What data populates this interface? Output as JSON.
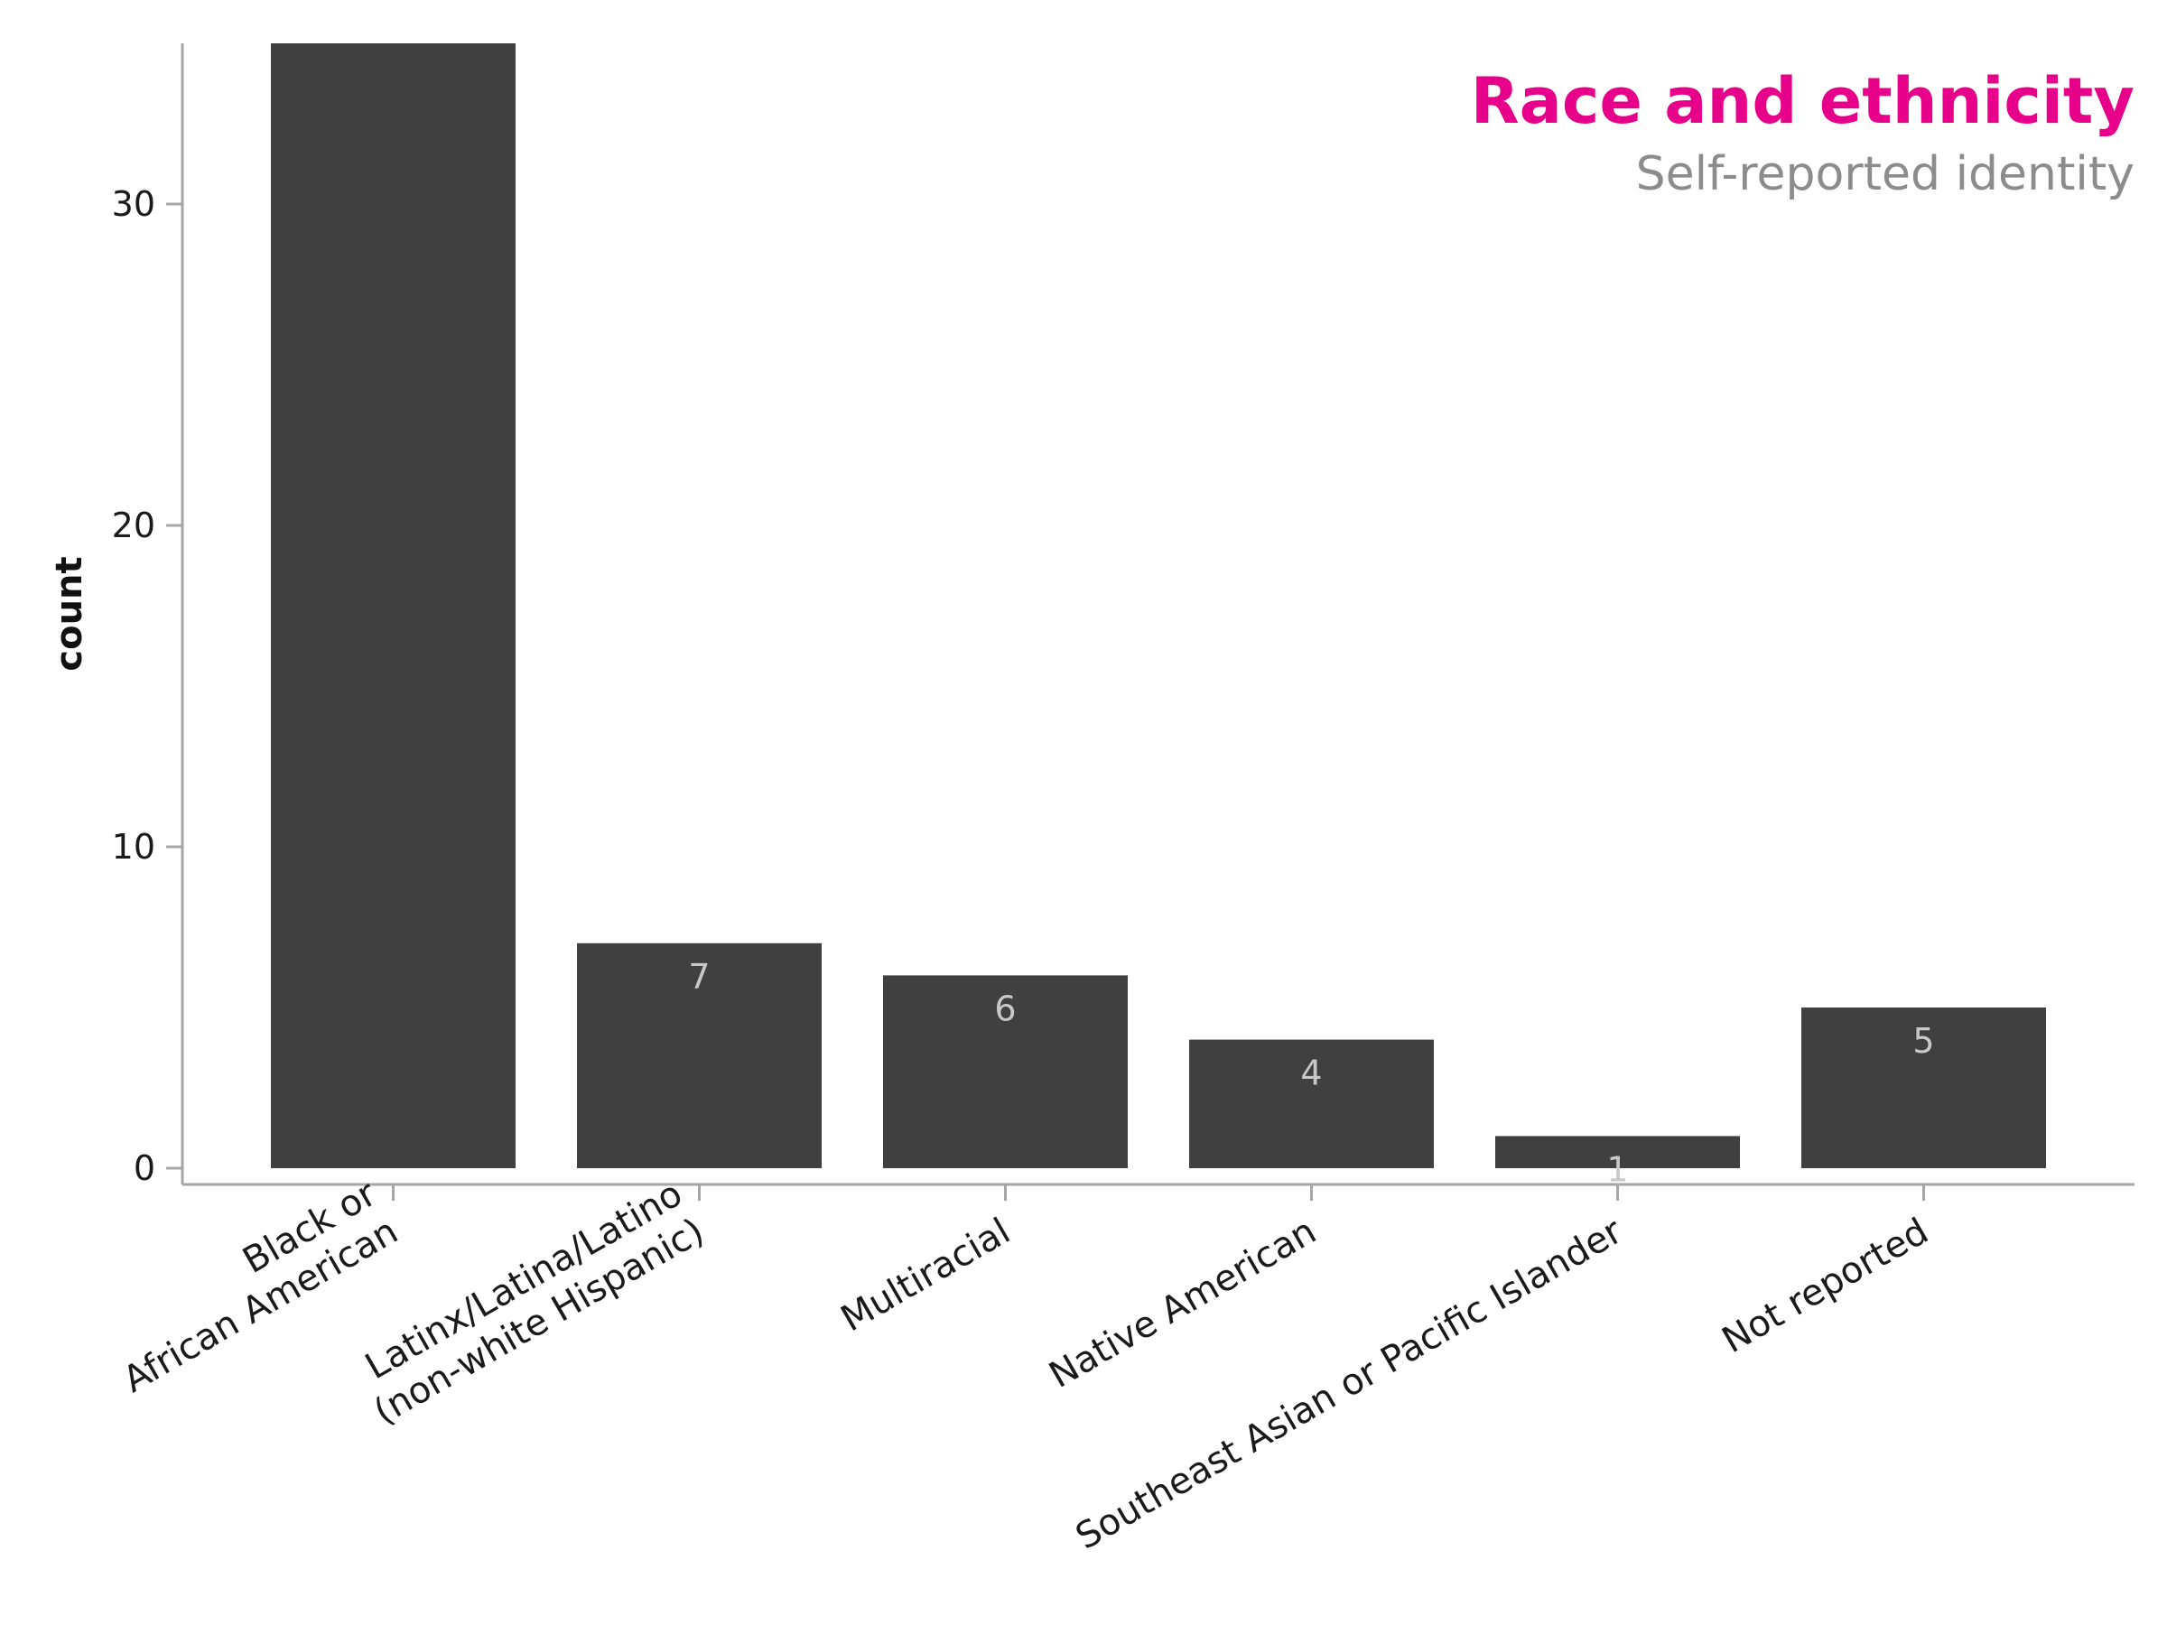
{
  "chart_data": {
    "type": "bar",
    "title": "Race and ethnicity",
    "subtitle": "Self-reported identity",
    "xlabel": "",
    "ylabel": "count",
    "categories": [
      [
        "Black or",
        "African American"
      ],
      [
        "Latinx/Latina/Latino",
        "(non-white Hispanic)"
      ],
      [
        "Multiracial"
      ],
      [
        "Native American"
      ],
      [
        "Southeast Asian or Pacific Islander"
      ],
      [
        "Not reported"
      ]
    ],
    "values": [
      35,
      7,
      6,
      4,
      1,
      5
    ],
    "value_labels": [
      "",
      "7",
      "6",
      "4",
      "1",
      "5"
    ],
    "ylim": [
      0,
      35
    ],
    "yticks": [
      0,
      10,
      20,
      30
    ],
    "grid": false,
    "legend": "none",
    "colors": {
      "bar": "#404040",
      "value_label": "#c8c8c8",
      "title": "#e6008a",
      "subtitle": "#8c8c8c",
      "axis": "#a6a6a6",
      "background": "#ffffff"
    }
  }
}
